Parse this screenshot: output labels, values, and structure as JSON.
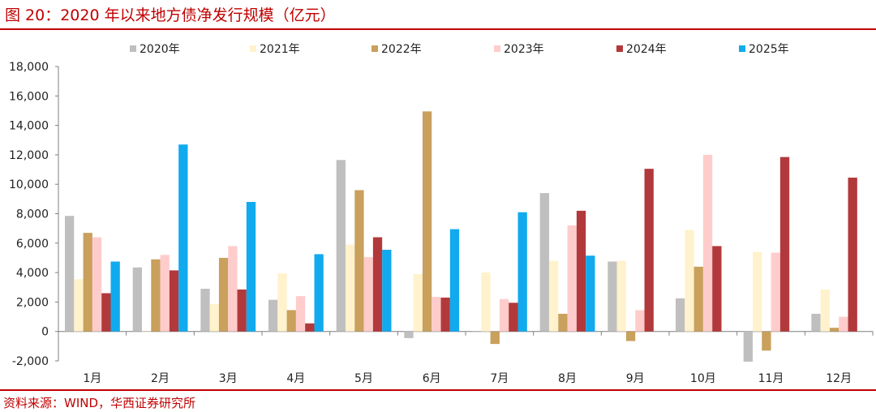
{
  "title": "图 20：2020 年以来地方债净发行规模（亿元）",
  "source": "资料来源：WIND，华西证券研究所",
  "chart_data": {
    "type": "bar",
    "title": "2020 年以来地方债净发行规模（亿元）",
    "xlabel": "",
    "ylabel": "",
    "ylim": [
      -2000,
      18000
    ],
    "yticks": [
      -2000,
      0,
      2000,
      4000,
      6000,
      8000,
      10000,
      12000,
      14000,
      16000,
      18000
    ],
    "ytick_labels": [
      "-2,000",
      "0",
      "2,000",
      "4,000",
      "6,000",
      "8,000",
      "10,000",
      "12,000",
      "14,000",
      "16,000",
      "18,000"
    ],
    "legend_position": "top",
    "categories": [
      "1月",
      "2月",
      "3月",
      "4月",
      "5月",
      "6月",
      "7月",
      "8月",
      "9月",
      "10月",
      "11月",
      "12月"
    ],
    "series": [
      {
        "name": "2020年",
        "color": "#bfbfbf",
        "values": [
          7850,
          4350,
          2900,
          2150,
          11650,
          -450,
          0,
          9400,
          4750,
          2250,
          -2050,
          1200
        ]
      },
      {
        "name": "2021年",
        "color": "#fff2cc",
        "values": [
          3550,
          0,
          1850,
          3950,
          5900,
          3900,
          4000,
          4800,
          4800,
          6900,
          5400,
          2850
        ]
      },
      {
        "name": "2022年",
        "color": "#c9a05c",
        "values": [
          6700,
          4900,
          5000,
          1450,
          9600,
          14950,
          -850,
          1200,
          -650,
          4400,
          -1300,
          250
        ]
      },
      {
        "name": "2023年",
        "color": "#ffcccc",
        "values": [
          6400,
          5200,
          5800,
          2400,
          5050,
          2350,
          2200,
          7200,
          1450,
          12000,
          5350,
          1000
        ]
      },
      {
        "name": "2024年",
        "color": "#b2393b",
        "values": [
          2600,
          4150,
          2850,
          550,
          6400,
          2300,
          1950,
          8200,
          11050,
          5800,
          11850,
          10450
        ]
      },
      {
        "name": "2025年",
        "color": "#11aaee",
        "values": [
          4750,
          12700,
          8800,
          5250,
          5550,
          6950,
          8100,
          5150,
          null,
          null,
          null,
          null
        ]
      }
    ]
  }
}
